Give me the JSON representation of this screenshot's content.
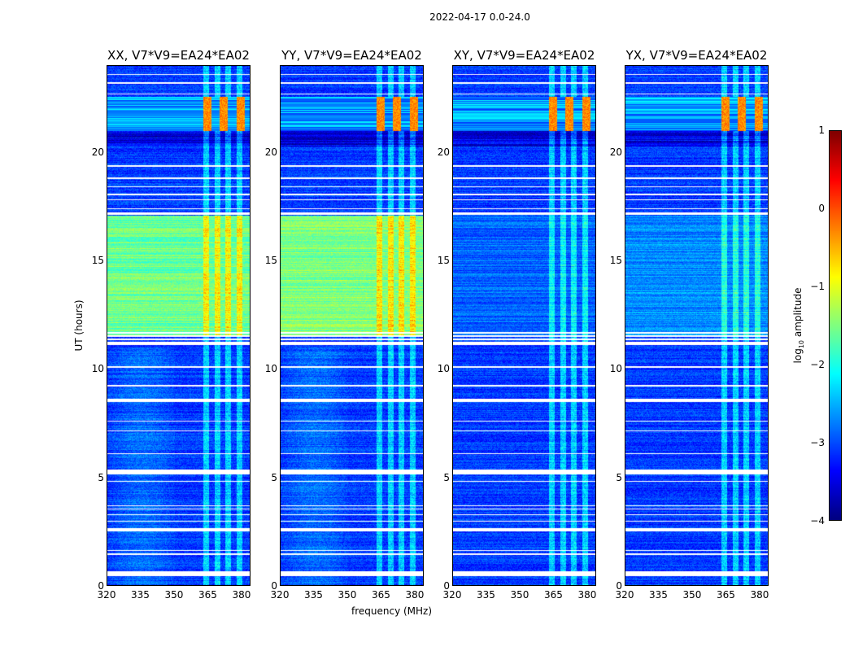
{
  "chart_data": {
    "type": "heatmap",
    "suptitle": "2022-04-17 0.0-24.0",
    "xlabel": "frequency (MHz)",
    "ylabel": "UT (hours)",
    "xlim": [
      320,
      384
    ],
    "ylim": [
      0,
      24
    ],
    "xticks": [
      "320",
      "335",
      "350",
      "365",
      "380"
    ],
    "xtick_values": [
      320,
      335,
      350,
      365,
      380
    ],
    "yticks": [
      "0",
      "5",
      "10",
      "15",
      "20"
    ],
    "ytick_values": [
      0,
      5,
      10,
      15,
      20
    ],
    "panels": [
      {
        "title": "XX, V7*V9=EA24*EA02",
        "bright_band_level": -1.6
      },
      {
        "title": "YY, V7*V9=EA24*EA02",
        "bright_band_level": -1.5
      },
      {
        "title": "XY, V7*V9=EA24*EA02",
        "bright_band_level": -2.9
      },
      {
        "title": "YX, V7*V9=EA24*EA02",
        "bright_band_level": -2.7
      }
    ],
    "background_level": -3.1,
    "bright_band_hours": [
      11.5,
      17.1
    ],
    "hot_band_hours": [
      21.0,
      22.6
    ],
    "hot_band_level": -0.3,
    "dark_band_hours": [
      20.3,
      21.0
    ],
    "rfi_band_mhz": [
      363,
      383
    ],
    "flagged_hours": [
      [
        0.45,
        0.65
      ],
      [
        1.4,
        1.5
      ],
      [
        1.6,
        1.65
      ],
      [
        2.5,
        2.65
      ],
      [
        2.95,
        3.0
      ],
      [
        3.25,
        3.3
      ],
      [
        3.5,
        3.55
      ],
      [
        3.65,
        3.7
      ],
      [
        4.78,
        4.83
      ],
      [
        5.15,
        5.35
      ],
      [
        6.08,
        6.12
      ],
      [
        7.12,
        7.17
      ],
      [
        7.57,
        7.62
      ],
      [
        8.5,
        8.65
      ],
      [
        9.2,
        9.28
      ],
      [
        10.08,
        10.12
      ],
      [
        11.1,
        11.25
      ],
      [
        11.35,
        11.4
      ],
      [
        11.5,
        11.55
      ],
      [
        11.65,
        11.7
      ],
      [
        17.15,
        17.25
      ],
      [
        17.4,
        17.45
      ],
      [
        17.8,
        17.85
      ],
      [
        18.05,
        18.1
      ],
      [
        18.4,
        18.45
      ],
      [
        18.8,
        18.85
      ],
      [
        19.35,
        19.42
      ],
      [
        22.7,
        22.75
      ],
      [
        23.2,
        23.25
      ],
      [
        23.6,
        23.65
      ]
    ],
    "colorbar": {
      "label": "log10 amplitude",
      "label_main": "log",
      "label_sub": "10",
      "label_rest": " amplitude",
      "range": [
        -4,
        1
      ],
      "ticks": [
        "1",
        "0",
        "−1",
        "−2",
        "−3",
        "−4"
      ],
      "tick_values": [
        1,
        0,
        -1,
        -2,
        -3,
        -4
      ],
      "colormap": "jet"
    }
  }
}
